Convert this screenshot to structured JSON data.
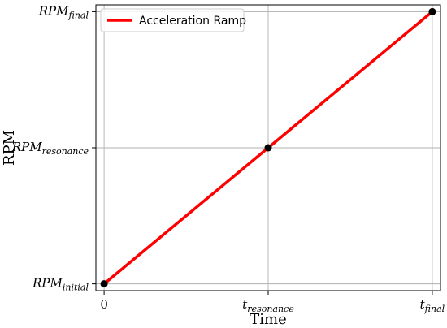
{
  "chart_data": {
    "type": "line",
    "title": "",
    "xlabel": "Time",
    "ylabel": "RPM",
    "grid": true,
    "legend_position": "top-left",
    "x_ticks": [
      {
        "value": 0,
        "base": "0",
        "sub": ""
      },
      {
        "value": 1,
        "base": "t",
        "sub": "resonance"
      },
      {
        "value": 2,
        "base": "t",
        "sub": "final"
      }
    ],
    "y_ticks": [
      {
        "value": 0,
        "base": "RPM",
        "sub": "initial"
      },
      {
        "value": 1,
        "base": "RPM",
        "sub": "resonance"
      },
      {
        "value": 2,
        "base": "RPM",
        "sub": "final"
      }
    ],
    "xlim": [
      -0.05,
      2.05
    ],
    "ylim": [
      -0.05,
      2.05
    ],
    "series": [
      {
        "name": "Acceleration Ramp",
        "color": "#ff0000",
        "x": [
          0,
          1,
          2
        ],
        "y": [
          0,
          1,
          2
        ],
        "markers": true,
        "marker_color": "#000000"
      }
    ]
  }
}
